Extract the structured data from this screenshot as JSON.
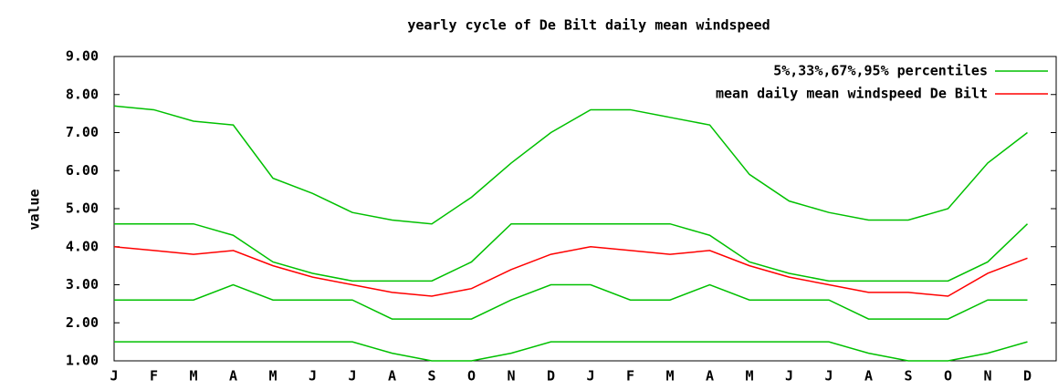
{
  "chart_data": {
    "type": "line",
    "title": "yearly cycle of De Bilt daily mean windspeed",
    "y_label": "value",
    "categories": [
      "J",
      "F",
      "M",
      "A",
      "M",
      "J",
      "J",
      "A",
      "S",
      "O",
      "N",
      "D",
      "J",
      "F",
      "M",
      "A",
      "M",
      "J",
      "J",
      "A",
      "S",
      "O",
      "N",
      "D"
    ],
    "ylim": [
      1,
      9
    ],
    "yticks": [
      {
        "value": 1,
        "label": "1.00"
      },
      {
        "value": 2,
        "label": "2.00"
      },
      {
        "value": 3,
        "label": "3.00"
      },
      {
        "value": 4,
        "label": "4.00"
      },
      {
        "value": 5,
        "label": "5.00"
      },
      {
        "value": 6,
        "label": "6.00"
      },
      {
        "value": 7,
        "label": "7.00"
      },
      {
        "value": 8,
        "label": "8.00"
      },
      {
        "value": 9,
        "label": "9.00"
      }
    ],
    "series": [
      {
        "name": "5%,33%,67%,95% percentiles",
        "color": "#00c000",
        "lines": [
          [
            1.5,
            1.5,
            1.5,
            1.5,
            1.5,
            1.5,
            1.5,
            1.2,
            1.0,
            1.0,
            1.2,
            1.5,
            1.5,
            1.5,
            1.5,
            1.5,
            1.5,
            1.5,
            1.5,
            1.2,
            1.0,
            1.0,
            1.2,
            1.5
          ],
          [
            2.6,
            2.6,
            2.6,
            3.0,
            2.6,
            2.6,
            2.6,
            2.1,
            2.1,
            2.1,
            2.6,
            3.0,
            3.0,
            2.6,
            2.6,
            3.0,
            2.6,
            2.6,
            2.6,
            2.1,
            2.1,
            2.1,
            2.6,
            2.6
          ],
          [
            4.6,
            4.6,
            4.6,
            4.3,
            3.6,
            3.3,
            3.1,
            3.1,
            3.1,
            3.6,
            4.6,
            4.6,
            4.6,
            4.6,
            4.6,
            4.3,
            3.6,
            3.3,
            3.1,
            3.1,
            3.1,
            3.1,
            3.6,
            4.6
          ],
          [
            7.7,
            7.6,
            7.3,
            7.2,
            5.8,
            5.4,
            4.9,
            4.7,
            4.6,
            5.3,
            6.2,
            7.0,
            7.6,
            7.6,
            7.4,
            7.2,
            5.9,
            5.2,
            4.9,
            4.7,
            4.7,
            5.0,
            6.2,
            7.0
          ]
        ]
      },
      {
        "name": "mean daily mean windspeed De Bilt",
        "color": "#ff0000",
        "values": [
          4.0,
          3.9,
          3.8,
          3.9,
          3.5,
          3.2,
          3.0,
          2.8,
          2.7,
          2.9,
          3.4,
          3.8,
          4.0,
          3.9,
          3.8,
          3.9,
          3.5,
          3.2,
          3.0,
          2.8,
          2.8,
          2.7,
          3.3,
          3.7
        ]
      }
    ]
  }
}
